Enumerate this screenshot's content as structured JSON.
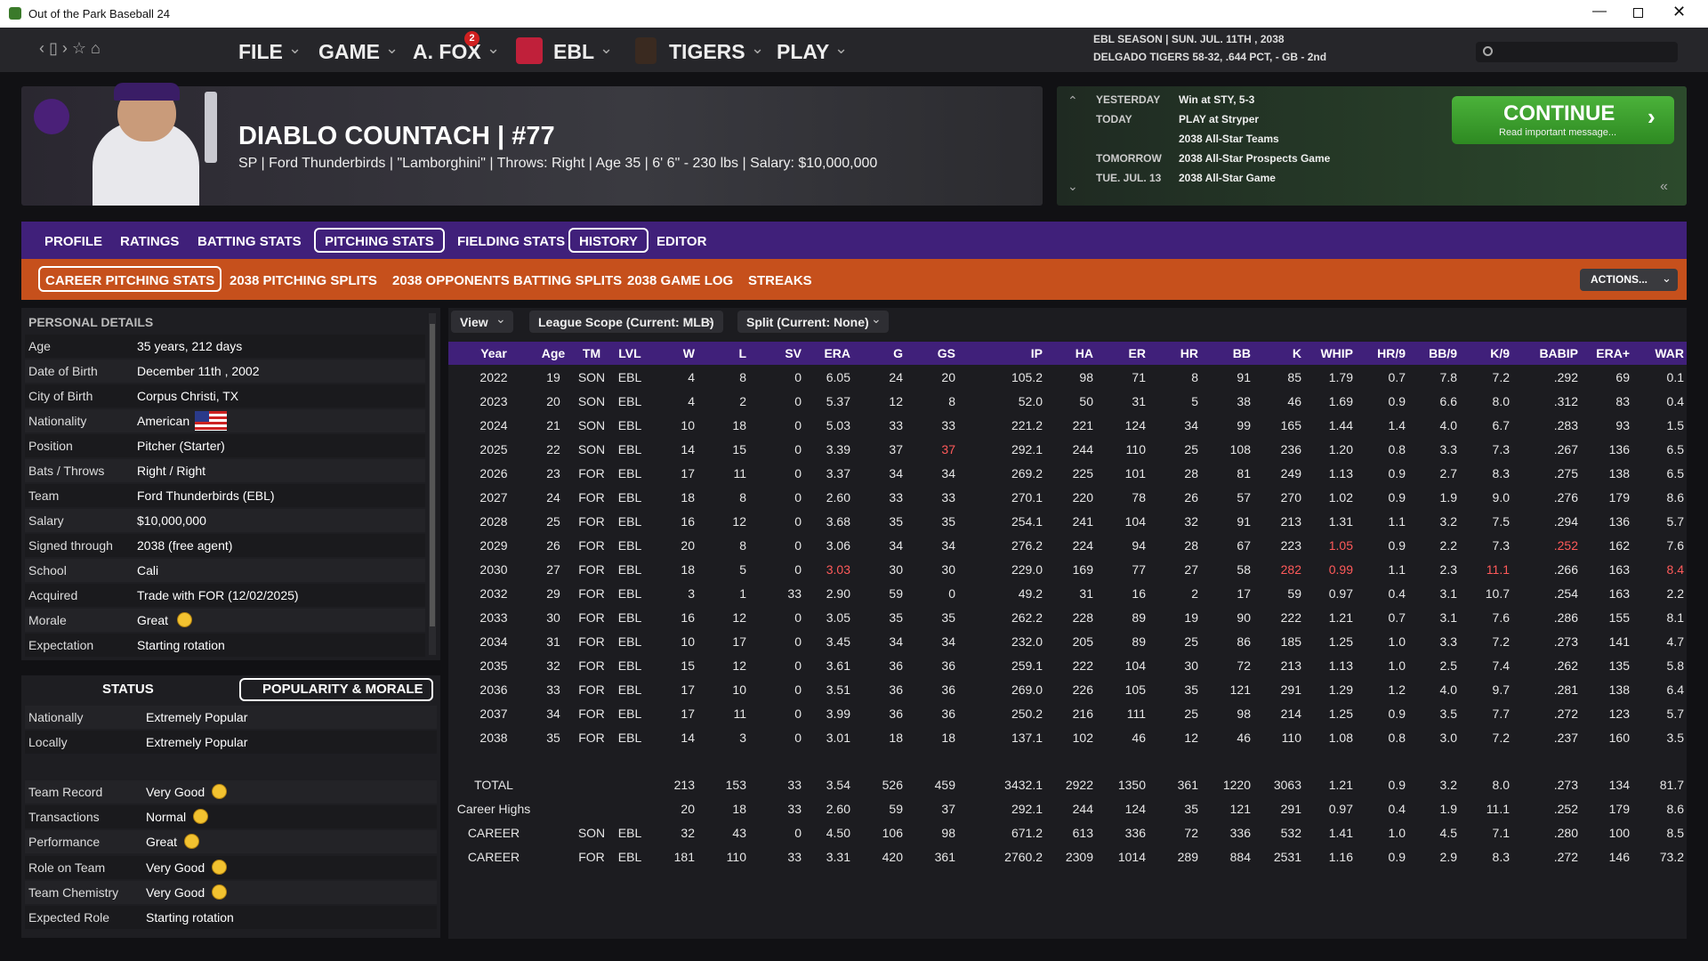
{
  "window": {
    "title": "Out of the Park Baseball 24"
  },
  "nav": {
    "menus": [
      "FILE",
      "GAME",
      "A. FOX",
      "EBL",
      "TIGERS",
      "PLAY"
    ],
    "badge": "2",
    "season": "EBL SEASON  |  SUN. JUL. 11TH , 2038",
    "team_record": "DELGADO TIGERS  58-32, .644 PCT, - GB - 2nd"
  },
  "player": {
    "name": "DIABLO COUNTACH  |  #77",
    "details": "SP  |  Ford Thunderbirds  |  \"Lamborghini\"  |  Throws: Right  |  Age 35  |  6' 6\" - 230 lbs  |  Salary: $10,000,000"
  },
  "schedule": {
    "rows": [
      {
        "day": "YESTERDAY",
        "event": "Win at STY, 5-3"
      },
      {
        "day": "TODAY",
        "event": "PLAY at Stryper"
      },
      {
        "event": "2038 All-Star Teams"
      },
      {
        "day": "TOMORROW",
        "event": "2038 All-Star Prospects Game"
      },
      {
        "day": "TUE. JUL. 13",
        "event": "2038 All-Star Game"
      }
    ],
    "continue": {
      "label": "CONTINUE",
      "sub": "Read important message..."
    }
  },
  "tabs": {
    "main": [
      "PROFILE",
      "RATINGS",
      "BATTING STATS",
      "PITCHING STATS",
      "FIELDING STATS",
      "HISTORY",
      "EDITOR"
    ],
    "sub": [
      "CAREER PITCHING STATS",
      "2038 PITCHING SPLITS",
      "2038 OPPONENTS BATTING SPLITS",
      "2038 GAME LOG",
      "STREAKS"
    ],
    "actions": "ACTIONS..."
  },
  "personal_details": {
    "title": "PERSONAL DETAILS",
    "rows": [
      {
        "label": "Age",
        "value": "35 years, 212 days"
      },
      {
        "label": "Date of Birth",
        "value": "December 11th , 2002"
      },
      {
        "label": "City of Birth",
        "value": "Corpus Christi, TX"
      },
      {
        "label": "Nationality",
        "value": "American"
      },
      {
        "label": "Position",
        "value": "Pitcher (Starter)"
      },
      {
        "label": "Bats / Throws",
        "value": "Right / Right"
      },
      {
        "label": "Team",
        "value": "Ford Thunderbirds (EBL)"
      },
      {
        "label": "Salary",
        "value": "$10,000,000"
      },
      {
        "label": "Signed through",
        "value": "2038 (free agent)"
      },
      {
        "label": "School",
        "value": "Cali"
      },
      {
        "label": "Acquired",
        "value": "Trade with FOR (12/02/2025)"
      },
      {
        "label": "Morale",
        "value": "Great"
      },
      {
        "label": "Expectation",
        "value": "Starting rotation"
      }
    ]
  },
  "status": {
    "tabs": [
      "STATUS",
      "POPULARITY & MORALE"
    ],
    "popularity": [
      {
        "label": "Nationally",
        "value": "Extremely Popular"
      },
      {
        "label": "Locally",
        "value": "Extremely Popular"
      }
    ],
    "morale": [
      {
        "label": "Team Record",
        "value": "Very Good"
      },
      {
        "label": "Transactions",
        "value": "Normal"
      },
      {
        "label": "Performance",
        "value": "Great"
      },
      {
        "label": "Role on Team",
        "value": "Very Good"
      },
      {
        "label": "Team Chemistry",
        "value": "Very Good"
      },
      {
        "label": "Expected Role",
        "value": "Starting rotation"
      }
    ]
  },
  "filters": [
    "View",
    "League Scope (Current: MLB)",
    "Split (Current: None)"
  ],
  "table": {
    "columns": [
      "Year",
      "Age",
      "TM",
      "LVL",
      "W",
      "L",
      "SV",
      "ERA",
      "G",
      "GS",
      "IP",
      "HA",
      "ER",
      "HR",
      "BB",
      "K",
      "WHIP",
      "HR/9",
      "BB/9",
      "K/9",
      "BABIP",
      "ERA+",
      "WAR"
    ],
    "rows": [
      [
        "2022",
        "19",
        "SON",
        "EBL",
        "4",
        "8",
        "0",
        "6.05",
        "24",
        "20",
        "105.2",
        "98",
        "71",
        "8",
        "91",
        "85",
        "1.79",
        "0.7",
        "7.8",
        "7.2",
        ".292",
        "69",
        "0.1"
      ],
      [
        "2023",
        "20",
        "SON",
        "EBL",
        "4",
        "2",
        "0",
        "5.37",
        "12",
        "8",
        "52.0",
        "50",
        "31",
        "5",
        "38",
        "46",
        "1.69",
        "0.9",
        "6.6",
        "8.0",
        ".312",
        "83",
        "0.4"
      ],
      [
        "2024",
        "21",
        "SON",
        "EBL",
        "10",
        "18",
        "0",
        "5.03",
        "33",
        "33",
        "221.2",
        "221",
        "124",
        "34",
        "99",
        "165",
        "1.44",
        "1.4",
        "4.0",
        "6.7",
        ".283",
        "93",
        "1.5"
      ],
      [
        "2025",
        "22",
        "SON",
        "EBL",
        "14",
        "15",
        "0",
        "3.39",
        "37",
        "37",
        "292.1",
        "244",
        "110",
        "25",
        "108",
        "236",
        "1.20",
        "0.8",
        "3.3",
        "7.3",
        ".267",
        "136",
        "6.5"
      ],
      [
        "2026",
        "23",
        "FOR",
        "EBL",
        "17",
        "11",
        "0",
        "3.37",
        "34",
        "34",
        "269.2",
        "225",
        "101",
        "28",
        "81",
        "249",
        "1.13",
        "0.9",
        "2.7",
        "8.3",
        ".275",
        "138",
        "6.5"
      ],
      [
        "2027",
        "24",
        "FOR",
        "EBL",
        "18",
        "8",
        "0",
        "2.60",
        "33",
        "33",
        "270.1",
        "220",
        "78",
        "26",
        "57",
        "270",
        "1.02",
        "0.9",
        "1.9",
        "9.0",
        ".276",
        "179",
        "8.6"
      ],
      [
        "2028",
        "25",
        "FOR",
        "EBL",
        "16",
        "12",
        "0",
        "3.68",
        "35",
        "35",
        "254.1",
        "241",
        "104",
        "32",
        "91",
        "213",
        "1.31",
        "1.1",
        "3.2",
        "7.5",
        ".294",
        "136",
        "5.7"
      ],
      [
        "2029",
        "26",
        "FOR",
        "EBL",
        "20",
        "8",
        "0",
        "3.06",
        "34",
        "34",
        "276.2",
        "224",
        "94",
        "28",
        "67",
        "223",
        "1.05",
        "0.9",
        "2.2",
        "7.3",
        ".252",
        "162",
        "7.6"
      ],
      [
        "2030",
        "27",
        "FOR",
        "EBL",
        "18",
        "5",
        "0",
        "3.03",
        "30",
        "30",
        "229.0",
        "169",
        "77",
        "27",
        "58",
        "282",
        "0.99",
        "1.1",
        "2.3",
        "11.1",
        ".266",
        "163",
        "8.4"
      ],
      [
        "2032",
        "29",
        "FOR",
        "EBL",
        "3",
        "1",
        "33",
        "2.90",
        "59",
        "0",
        "49.2",
        "31",
        "16",
        "2",
        "17",
        "59",
        "0.97",
        "0.4",
        "3.1",
        "10.7",
        ".254",
        "163",
        "2.2"
      ],
      [
        "2033",
        "30",
        "FOR",
        "EBL",
        "16",
        "12",
        "0",
        "3.05",
        "35",
        "35",
        "262.2",
        "228",
        "89",
        "19",
        "90",
        "222",
        "1.21",
        "0.7",
        "3.1",
        "7.6",
        ".286",
        "155",
        "8.1"
      ],
      [
        "2034",
        "31",
        "FOR",
        "EBL",
        "10",
        "17",
        "0",
        "3.45",
        "34",
        "34",
        "232.0",
        "205",
        "89",
        "25",
        "86",
        "185",
        "1.25",
        "1.0",
        "3.3",
        "7.2",
        ".273",
        "141",
        "4.7"
      ],
      [
        "2035",
        "32",
        "FOR",
        "EBL",
        "15",
        "12",
        "0",
        "3.61",
        "36",
        "36",
        "259.1",
        "222",
        "104",
        "30",
        "72",
        "213",
        "1.13",
        "1.0",
        "2.5",
        "7.4",
        ".262",
        "135",
        "5.8"
      ],
      [
        "2036",
        "33",
        "FOR",
        "EBL",
        "17",
        "10",
        "0",
        "3.51",
        "36",
        "36",
        "269.0",
        "226",
        "105",
        "35",
        "121",
        "291",
        "1.29",
        "1.2",
        "4.0",
        "9.7",
        ".281",
        "138",
        "6.4"
      ],
      [
        "2037",
        "34",
        "FOR",
        "EBL",
        "17",
        "11",
        "0",
        "3.99",
        "36",
        "36",
        "250.2",
        "216",
        "111",
        "25",
        "98",
        "214",
        "1.25",
        "0.9",
        "3.5",
        "7.7",
        ".272",
        "123",
        "5.7"
      ],
      [
        "2038",
        "35",
        "FOR",
        "EBL",
        "14",
        "3",
        "0",
        "3.01",
        "18",
        "18",
        "137.1",
        "102",
        "46",
        "12",
        "46",
        "110",
        "1.08",
        "0.8",
        "3.0",
        "7.2",
        ".237",
        "160",
        "3.5"
      ]
    ],
    "totals": [
      [
        "TOTAL",
        null,
        null,
        null,
        "213",
        "153",
        "33",
        "3.54",
        "526",
        "459",
        "3432.1",
        "2922",
        "1350",
        "361",
        "1220",
        "3063",
        "1.21",
        "0.9",
        "3.2",
        "8.0",
        ".273",
        "134",
        "81.7"
      ],
      [
        "Career Highs",
        null,
        null,
        null,
        "20",
        "18",
        "33",
        "2.60",
        "59",
        "37",
        "292.1",
        "244",
        "124",
        "35",
        "121",
        "291",
        "0.97",
        "0.4",
        "1.9",
        "11.1",
        ".252",
        "179",
        "8.6"
      ],
      [
        "CAREER",
        null,
        "SON",
        "EBL",
        "32",
        "43",
        "0",
        "4.50",
        "106",
        "98",
        "671.2",
        "613",
        "336",
        "72",
        "336",
        "532",
        "1.41",
        "1.0",
        "4.5",
        "7.1",
        ".280",
        "100",
        "8.5"
      ],
      [
        "CAREER",
        null,
        "FOR",
        "EBL",
        "181",
        "110",
        "33",
        "3.31",
        "420",
        "361",
        "2760.2",
        "2309",
        "1014",
        "289",
        "884",
        "2531",
        "1.16",
        "0.9",
        "2.9",
        "8.3",
        ".272",
        "146",
        "73.2"
      ]
    ]
  }
}
